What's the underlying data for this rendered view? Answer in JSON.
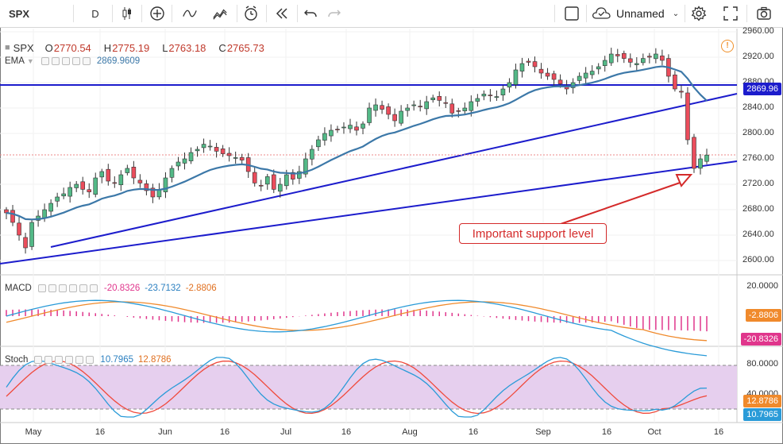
{
  "toolbar": {
    "symbol": "SPX",
    "interval": "D",
    "layout_name": "Unnamed",
    "icons": [
      "candles-icon",
      "add-indicator-icon",
      "line-tool-icon",
      "indicators-icon",
      "alert-icon",
      "replay-icon",
      "undo-icon",
      "redo-icon",
      "layout-icon",
      "cloud-save-icon",
      "settings-icon",
      "fullscreen-icon",
      "screenshot-icon"
    ]
  },
  "legend": {
    "symbol": "SPX",
    "open_label": "O",
    "open": "2770.54",
    "high_label": "H",
    "high": "2775.19",
    "low_label": "L",
    "low": "2763.18",
    "close_label": "C",
    "close": "2765.73",
    "ema_label": "EMA",
    "ema_value": "2869.9609"
  },
  "price_axis": {
    "ticks": [
      "2960.00",
      "2920.00",
      "2880.00",
      "2840.00",
      "2800.00",
      "2760.00",
      "2720.00",
      "2680.00",
      "2640.00",
      "2600.00"
    ],
    "tag_line": "2869.96",
    "line_color": "#1c1ccc"
  },
  "annotation": {
    "text": "Important support level",
    "color": "#d42a2a"
  },
  "macd": {
    "label": "MACD",
    "v1": "-20.8326",
    "v2": "-23.7132",
    "v3": "-2.8806",
    "axis_tick": "20.0000",
    "tag_signal": "-2.8806",
    "tag_macd": "-20.8326"
  },
  "stoch": {
    "label": "Stoch",
    "v1": "10.7965",
    "v2": "12.8786",
    "axis_ticks": [
      "80.0000",
      "40.0000"
    ],
    "tag_d": "12.8786",
    "tag_k": "10.7965"
  },
  "time_axis": {
    "labels": [
      "May",
      "16",
      "Jun",
      "16",
      "Jul",
      "16",
      "Aug",
      "16",
      "Sep",
      "16",
      "Oct",
      "16"
    ]
  },
  "colors": {
    "up": "#53b987",
    "down": "#eb4d5c",
    "ema": "#3c78a8",
    "macd_line": "#2a9bd8",
    "signal_line": "#f08a2c",
    "stoch_k": "#2a9bd8",
    "stoch_d": "#f04a3c",
    "stoch_band": "#e6cfee"
  }
}
